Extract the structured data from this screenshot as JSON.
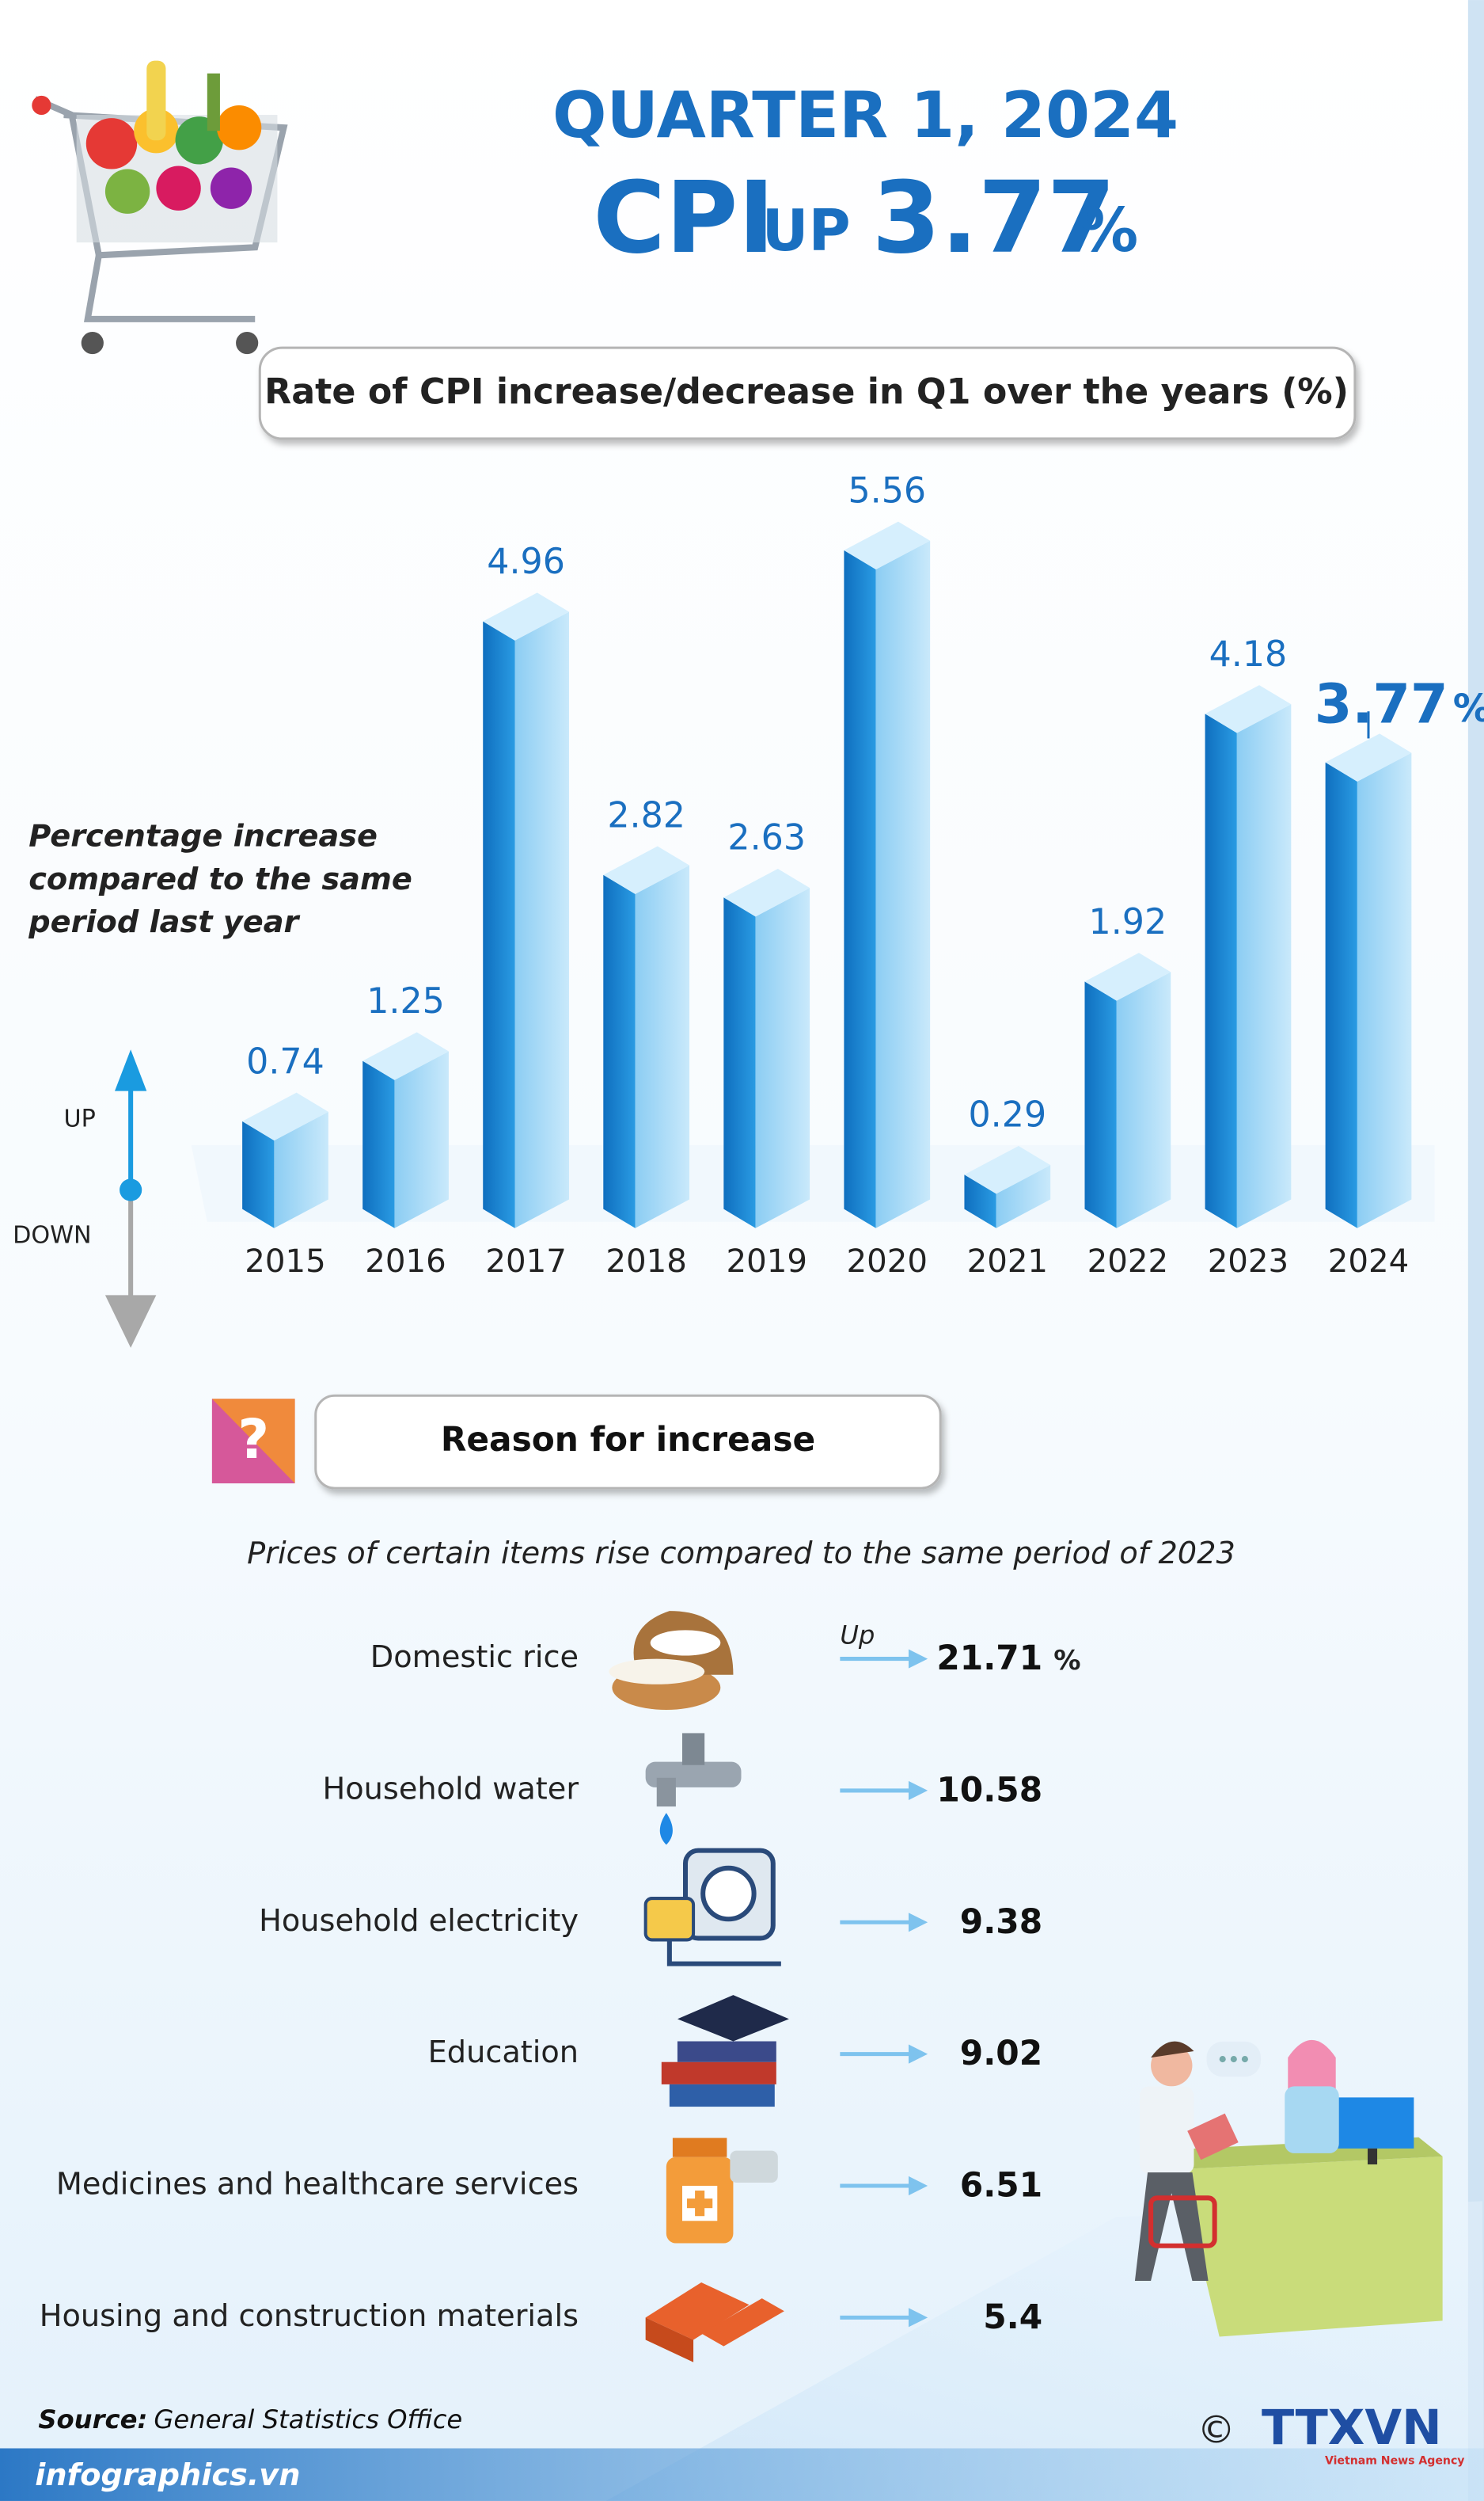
{
  "header": {
    "line1": "QUARTER 1, 2024",
    "cpi": "CPI",
    "up": "UP",
    "value": "3.77",
    "unit": "%"
  },
  "chart_data": {
    "type": "bar",
    "title": "Rate of CPI increase/decrease in Q1 over the years (%)",
    "annotation": "Percentage increase compared to the same period last year",
    "up_label": "UP",
    "down_label": "DOWN",
    "categories": [
      "2015",
      "2016",
      "2017",
      "2018",
      "2019",
      "2020",
      "2021",
      "2022",
      "2023",
      "2024"
    ],
    "values": [
      0.74,
      1.25,
      4.96,
      2.82,
      2.63,
      5.56,
      0.29,
      1.92,
      4.18,
      3.77
    ],
    "highlight_unit": "%",
    "color": "#1b8ad6"
  },
  "reasons": {
    "title": "Reason for increase",
    "subtitle": "Prices of certain items rise compared to the same period of 2023",
    "up_label": "Up",
    "unit": "%",
    "items": [
      {
        "name": "Domestic rice",
        "value": "21.71"
      },
      {
        "name": "Household water",
        "value": "10.58"
      },
      {
        "name": "Household electricity",
        "value": "9.38"
      },
      {
        "name": "Education",
        "value": "9.02"
      },
      {
        "name": "Medicines and healthcare services",
        "value": "6.51"
      },
      {
        "name": "Housing and construction materials",
        "value": "5.4"
      }
    ]
  },
  "footer": {
    "source_label": "Source:",
    "source": "General Statistics Office",
    "site": "infographics.vn",
    "copyright": "©",
    "agency": "TTXVN",
    "agency_full": "Vietnam News Agency"
  }
}
